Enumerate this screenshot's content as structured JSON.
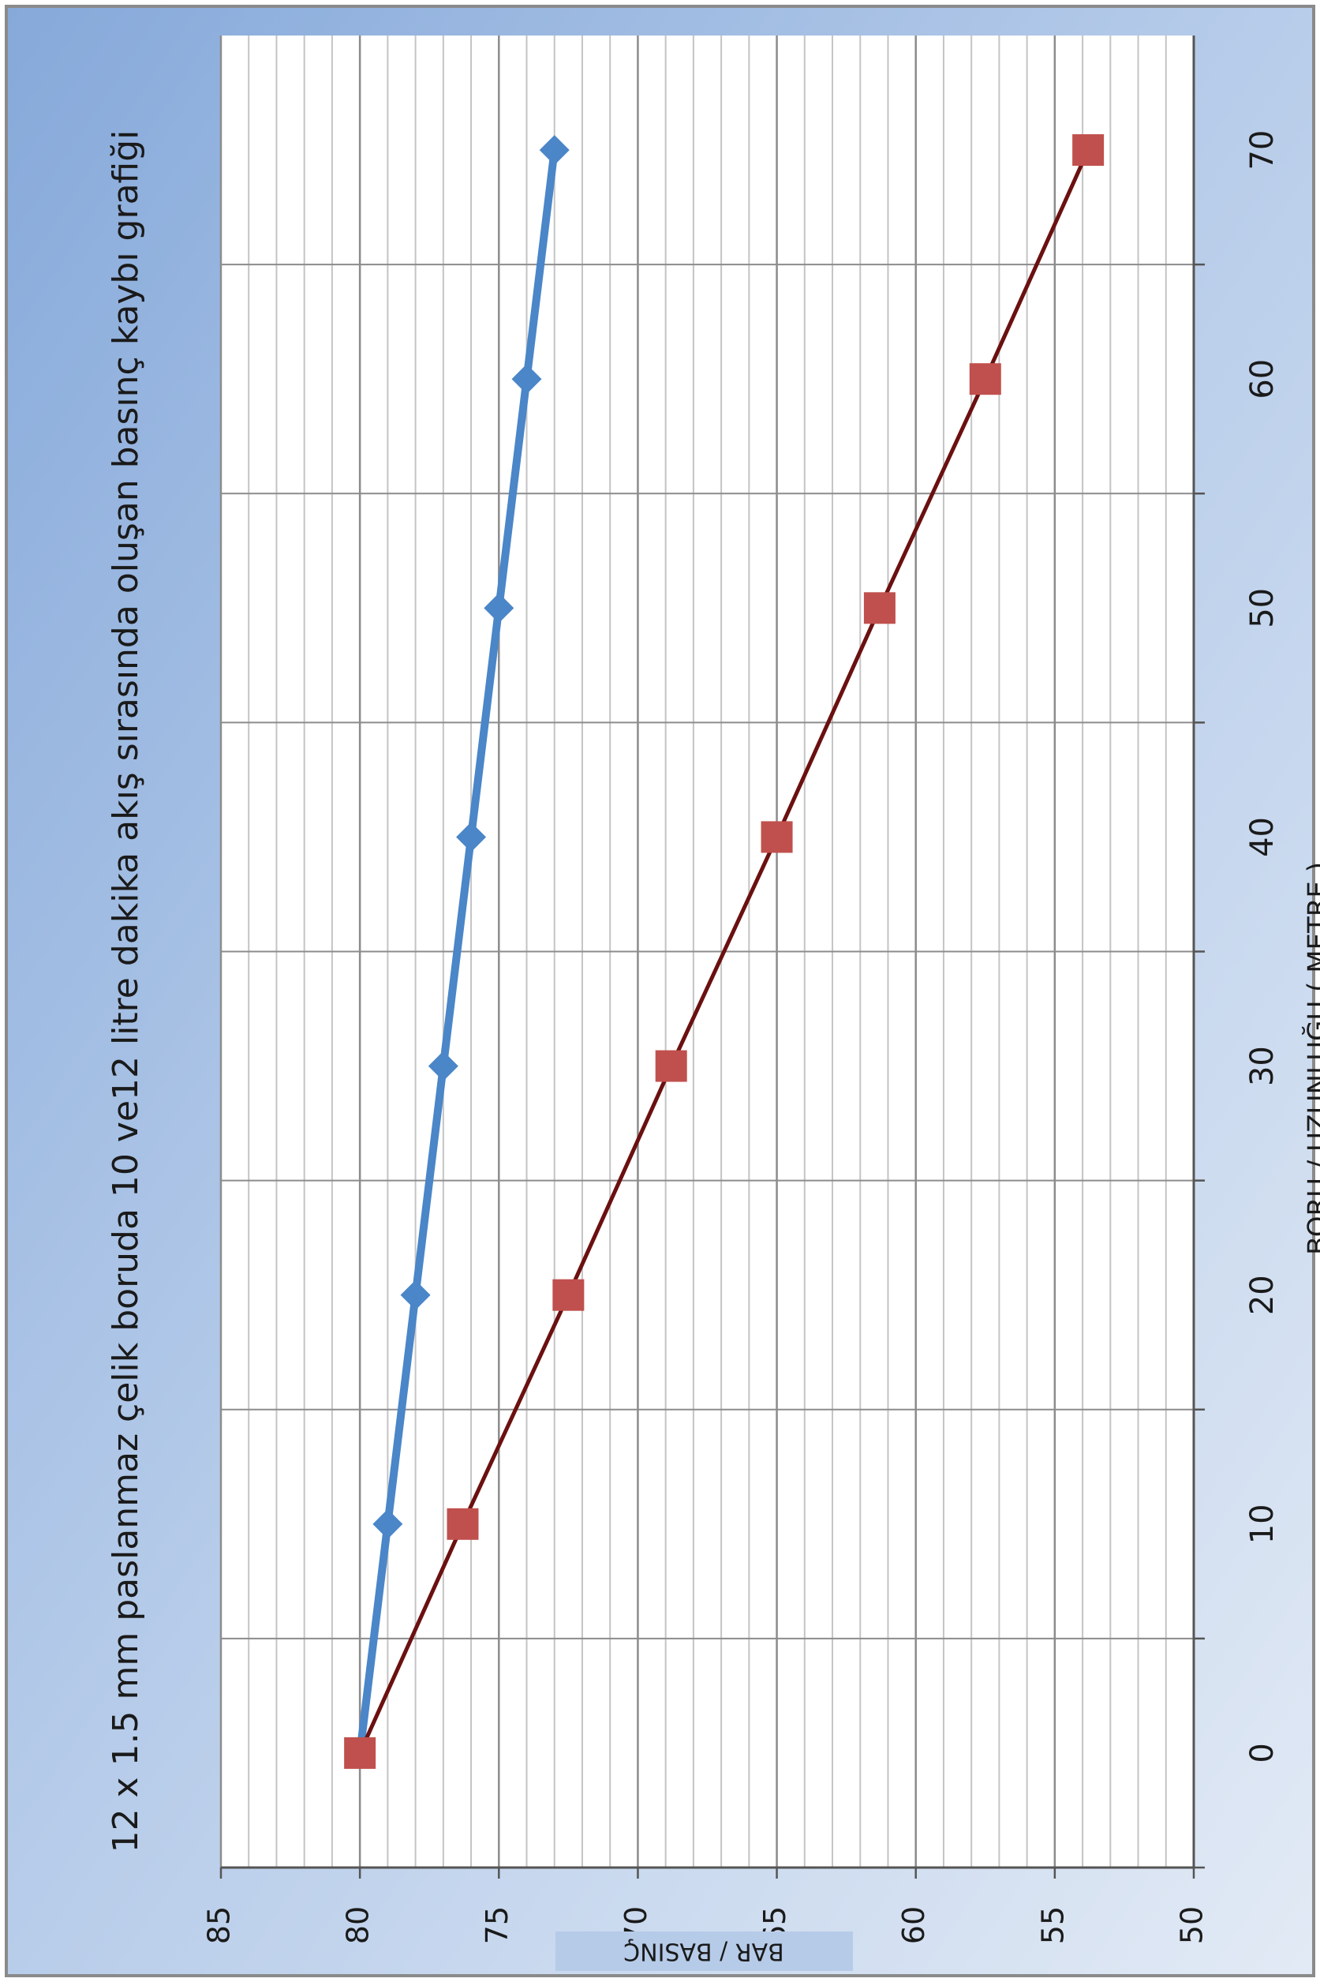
{
  "chart_data": {
    "type": "line",
    "title": "12 x 1.5 mm paslanmaz çelik boruda 10 ve12 litre dakika akış sırasında  oluşan basınç kaybı grafiği",
    "x_label": "BORU / UZUNLUĞU ( METRE )",
    "y_label": "BAR / BASINÇ",
    "categories": [
      "0",
      "10",
      "20",
      "30",
      "40",
      "50",
      "60",
      "70"
    ],
    "series": [
      {
        "color": "#4a86c8",
        "marker": "diamond",
        "values": [
          80,
          79,
          78,
          77,
          76,
          75,
          74,
          73
        ]
      },
      {
        "color": "#c0504d",
        "line_color": "#6b1010",
        "marker": "square",
        "values": [
          80,
          76.3,
          72.5,
          68.8,
          65,
          61.3,
          57.5,
          53.8
        ]
      }
    ],
    "ylim": [
      50,
      85
    ],
    "yticks": [
      85,
      80,
      75,
      70,
      65,
      60,
      55,
      50
    ],
    "minor_ystep": 1,
    "grid": true
  }
}
